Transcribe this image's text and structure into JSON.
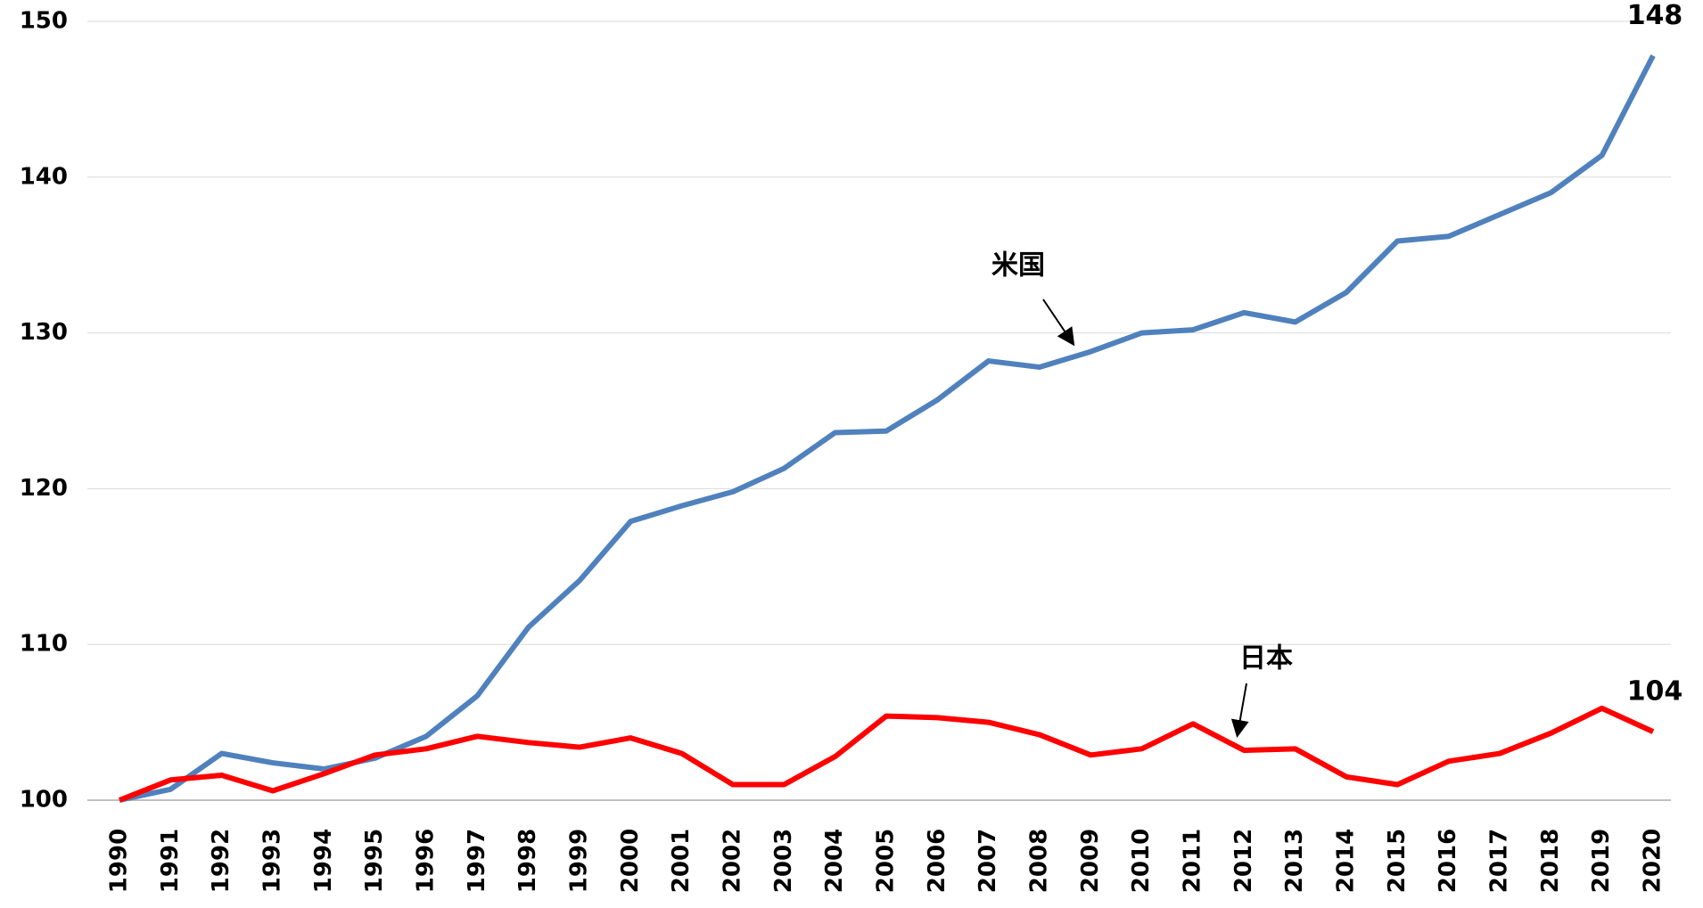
{
  "chart_data": {
    "type": "line",
    "categories": [
      "1990",
      "1991",
      "1992",
      "1993",
      "1994",
      "1995",
      "1996",
      "1997",
      "1998",
      "1999",
      "2000",
      "2001",
      "2002",
      "2003",
      "2004",
      "2005",
      "2006",
      "2007",
      "2008",
      "2009",
      "2010",
      "2011",
      "2012",
      "2013",
      "2014",
      "2015",
      "2016",
      "2017",
      "2018",
      "2019",
      "2020"
    ],
    "series": [
      {
        "name": "米国",
        "color": "#4f81bd",
        "values": [
          100,
          100.7,
          103,
          102.4,
          102,
          102.7,
          104.1,
          106.7,
          111.1,
          114.1,
          117.9,
          118.9,
          119.8,
          121.3,
          123.6,
          123.7,
          125.7,
          128.2,
          127.8,
          128.8,
          130,
          130.2,
          131.3,
          130.7,
          132.6,
          135.9,
          136.2,
          137.6,
          139,
          141.4,
          147.8
        ],
        "value_labels": [
          null,
          null,
          null,
          null,
          null,
          null,
          null,
          null,
          null,
          null,
          null,
          null,
          null,
          null,
          null,
          null,
          null,
          null,
          null,
          null,
          null,
          null,
          null,
          null,
          null,
          null,
          null,
          null,
          null,
          null,
          "148"
        ]
      },
      {
        "name": "日本",
        "color": "#ff0000",
        "values": [
          100,
          101.3,
          101.6,
          100.6,
          101.7,
          102.9,
          103.3,
          104.1,
          103.7,
          103.4,
          104,
          103,
          101,
          101,
          102.8,
          105.4,
          105.3,
          105,
          104.2,
          102.9,
          103.3,
          104.9,
          103.2,
          103.3,
          101.5,
          101,
          102.5,
          103,
          104.3,
          105.9,
          104.4
        ],
        "value_labels": [
          null,
          null,
          null,
          null,
          null,
          null,
          null,
          null,
          null,
          null,
          null,
          null,
          null,
          null,
          null,
          null,
          null,
          null,
          null,
          null,
          null,
          null,
          null,
          null,
          null,
          null,
          null,
          null,
          null,
          null,
          "104"
        ]
      }
    ],
    "ylim": [
      100,
      150
    ],
    "yticks": [
      100,
      110,
      120,
      130,
      140,
      150
    ],
    "grid": true
  }
}
